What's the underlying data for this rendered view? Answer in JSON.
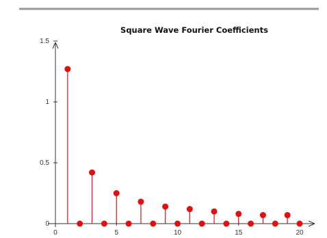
{
  "chart_data": {
    "type": "stem",
    "title": "Square Wave Fourier Coefficients",
    "xlabel": "",
    "ylabel": "",
    "xlim": [
      0,
      21
    ],
    "ylim": [
      0,
      1.5
    ],
    "x_ticks": [
      {
        "value": 0,
        "label": "0"
      },
      {
        "value": 5,
        "label": "5"
      },
      {
        "value": 10,
        "label": "10"
      },
      {
        "value": 15,
        "label": "15"
      },
      {
        "value": 20,
        "label": "20"
      }
    ],
    "y_ticks": [
      {
        "value": 0,
        "label": "0"
      },
      {
        "value": 0.5,
        "label": "0.5"
      },
      {
        "value": 1,
        "label": "1"
      },
      {
        "value": 1.5,
        "label": "1.5"
      }
    ],
    "grid": false,
    "legend": "none",
    "colors": {
      "stem": "#e01010",
      "marker": "#e01010",
      "axis": "#333333",
      "top_rule": "#999999"
    },
    "x": [
      1,
      2,
      3,
      4,
      5,
      6,
      7,
      8,
      9,
      10,
      11,
      12,
      13,
      14,
      15,
      16,
      17,
      18,
      19,
      20
    ],
    "y": [
      1.27,
      0,
      0.42,
      0,
      0.25,
      0,
      0.18,
      0,
      0.14,
      0,
      0.12,
      0,
      0.1,
      0,
      0.08,
      0,
      0.07,
      0,
      0.07,
      0
    ]
  }
}
